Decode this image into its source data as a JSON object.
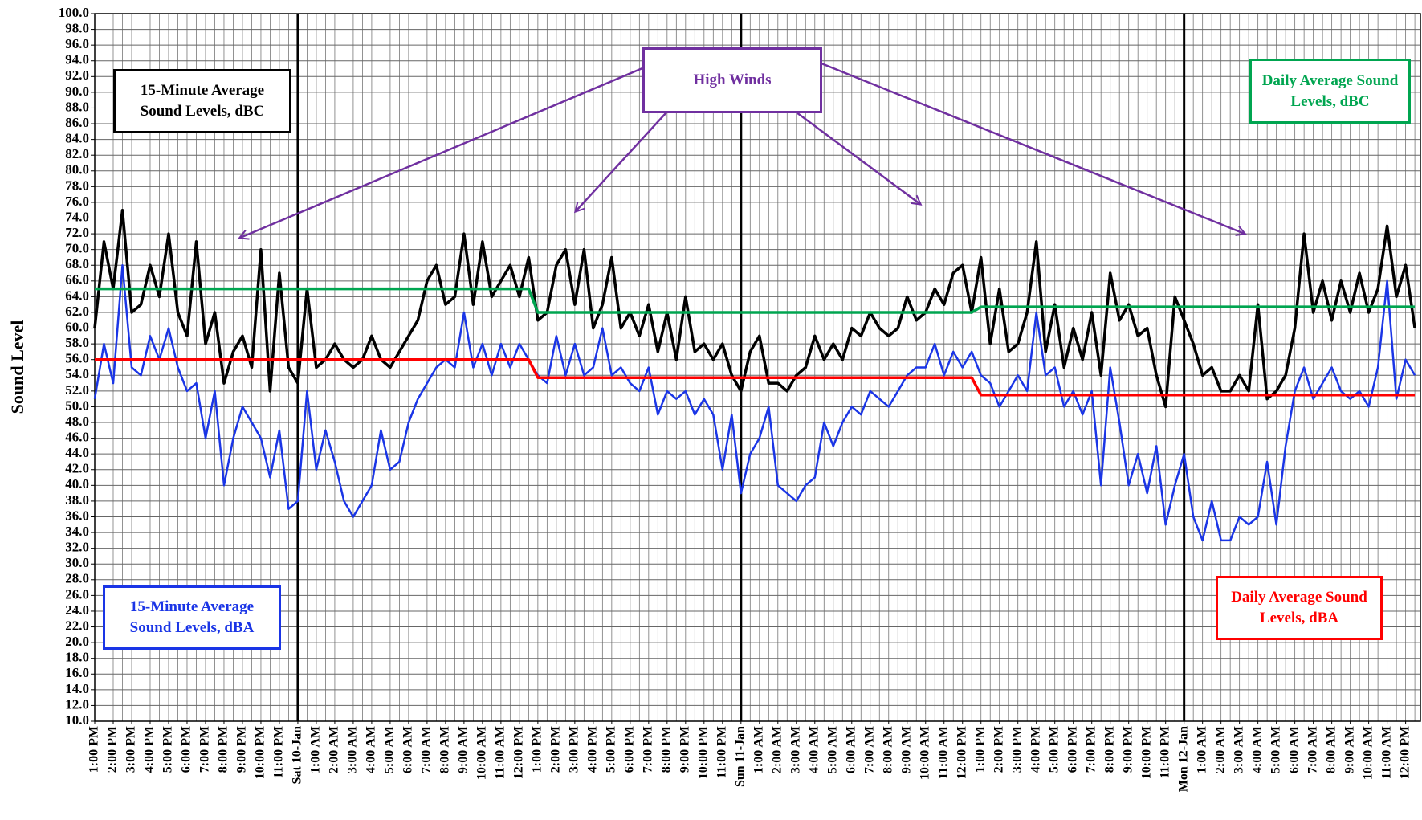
{
  "chart_data": {
    "type": "line",
    "y_label": "Sound Level",
    "annotation": "High Winds",
    "categories": [
      "1:00 PM",
      null,
      "2:00 PM",
      null,
      "3:00 PM",
      null,
      "4:00 PM",
      null,
      "5:00 PM",
      null,
      "6:00 PM",
      null,
      "7:00 PM",
      null,
      "8:00 PM",
      null,
      "9:00 PM",
      null,
      "10:00 PM",
      null,
      "11:00 PM",
      null,
      "Sat 10-Jan",
      null,
      "1:00 AM",
      null,
      "2:00 AM",
      null,
      "3:00 AM",
      null,
      "4:00 AM",
      null,
      "5:00 AM",
      null,
      "6:00 AM",
      null,
      "7:00 AM",
      null,
      "8:00 AM",
      null,
      "9:00 AM",
      null,
      "10:00 AM",
      null,
      "11:00 AM",
      null,
      "12:00 PM",
      null,
      "1:00 PM",
      null,
      "2:00 PM",
      null,
      "3:00 PM",
      null,
      "4:00 PM",
      null,
      "5:00 PM",
      null,
      "6:00 PM",
      null,
      "7:00 PM",
      null,
      "8:00 PM",
      null,
      "9:00 PM",
      null,
      "10:00 PM",
      null,
      "11:00 PM",
      null,
      "Sun 11-Jan",
      null,
      "1:00 AM",
      null,
      "2:00 AM",
      null,
      "3:00 AM",
      null,
      "4:00 AM",
      null,
      "5:00 AM",
      null,
      "6:00 AM",
      null,
      "7:00 AM",
      null,
      "8:00 AM",
      null,
      "9:00 AM",
      null,
      "10:00 AM",
      null,
      "11:00 AM",
      null,
      "12:00 PM",
      null,
      "1:00 PM",
      null,
      "2:00 PM",
      null,
      "3:00 PM",
      null,
      "4:00 PM",
      null,
      "5:00 PM",
      null,
      "6:00 PM",
      null,
      "7:00 PM",
      null,
      "8:00 PM",
      null,
      "9:00 PM",
      null,
      "10:00 PM",
      null,
      "11:00 PM",
      null,
      "Mon 12-Jan",
      null,
      "1:00 AM",
      null,
      "2:00 AM",
      null,
      "3:00 AM",
      null,
      "4:00 AM",
      null,
      "5:00 AM",
      null,
      "6:00 AM",
      null,
      "7:00 AM",
      null,
      "8:00 AM",
      null,
      "9:00 AM",
      null,
      "10:00 AM",
      null,
      "11:00 AM",
      null,
      "12:00 PM",
      null
    ],
    "series": [
      {
        "name": "15-Minute Average Sound Levels, dBC",
        "color": "#000000",
        "width": 3.5,
        "values": [
          60,
          71,
          65,
          75,
          62,
          63,
          68,
          64,
          72,
          62,
          59,
          71,
          58,
          62,
          53,
          57,
          59,
          55,
          70,
          52,
          67,
          55,
          53,
          65,
          55,
          56,
          58,
          56,
          55,
          56,
          59,
          56,
          55,
          57,
          59,
          61,
          66,
          68,
          63,
          64,
          72,
          63,
          71,
          64,
          66,
          68,
          64,
          69,
          61,
          62,
          68,
          70,
          63,
          70,
          60,
          63,
          69,
          60,
          62,
          59,
          63,
          57,
          62,
          56,
          64,
          57,
          58,
          56,
          58,
          54,
          52,
          57,
          59,
          53,
          53,
          52,
          54,
          55,
          59,
          56,
          58,
          56,
          60,
          59,
          62,
          60,
          59,
          60,
          64,
          61,
          62,
          65,
          63,
          67,
          68,
          62,
          69,
          58,
          65,
          57,
          58,
          62,
          71,
          57,
          63,
          55,
          60,
          56,
          62,
          54,
          67,
          61,
          63,
          59,
          60,
          54,
          50,
          64,
          61,
          58,
          54,
          55,
          52,
          52,
          54,
          52,
          63,
          51,
          52,
          54,
          60,
          72,
          62,
          66,
          61,
          66,
          62,
          67,
          62,
          65,
          73,
          64,
          68,
          60
        ]
      },
      {
        "name": "15-Minute Average Sound Levels, dBA",
        "color": "#1a35e6",
        "width": 2.5,
        "values": [
          51,
          58,
          53,
          68,
          55,
          54,
          59,
          56,
          60,
          55,
          52,
          53,
          46,
          52,
          40,
          46,
          50,
          48,
          46,
          41,
          47,
          37,
          38,
          52,
          42,
          47,
          43,
          38,
          36,
          38,
          40,
          47,
          42,
          43,
          48,
          51,
          53,
          55,
          56,
          55,
          62,
          55,
          58,
          54,
          58,
          55,
          58,
          56,
          54,
          53,
          59,
          54,
          58,
          54,
          55,
          60,
          54,
          55,
          53,
          52,
          55,
          49,
          52,
          51,
          52,
          49,
          51,
          49,
          42,
          49,
          39,
          44,
          46,
          50,
          40,
          39,
          38,
          40,
          41,
          48,
          45,
          48,
          50,
          49,
          52,
          51,
          50,
          52,
          54,
          55,
          55,
          58,
          54,
          57,
          55,
          57,
          54,
          53,
          50,
          52,
          54,
          52,
          62,
          54,
          55,
          50,
          52,
          49,
          52,
          40,
          55,
          48,
          40,
          44,
          39,
          45,
          35,
          40,
          44,
          36,
          33,
          38,
          33,
          33,
          36,
          35,
          36,
          43,
          35,
          45,
          52,
          55,
          51,
          53,
          55,
          52,
          51,
          52,
          50,
          55,
          66,
          51,
          56,
          54
        ]
      },
      {
        "name": "Daily Average Sound Levels, dBC",
        "color": "#00a550",
        "width": 3.5,
        "values": [
          65,
          65,
          65,
          65,
          65,
          65,
          65,
          65,
          65,
          65,
          65,
          65,
          65,
          65,
          65,
          65,
          65,
          65,
          65,
          65,
          65,
          65,
          65,
          65,
          65,
          65,
          65,
          65,
          65,
          65,
          65,
          65,
          65,
          65,
          65,
          65,
          65,
          65,
          65,
          65,
          65,
          65,
          65,
          65,
          65,
          65,
          65,
          65,
          62,
          62,
          62,
          62,
          62,
          62,
          62,
          62,
          62,
          62,
          62,
          62,
          62,
          62,
          62,
          62,
          62,
          62,
          62,
          62,
          62,
          62,
          62,
          62,
          62,
          62,
          62,
          62,
          62,
          62,
          62,
          62,
          62,
          62,
          62,
          62,
          62,
          62,
          62,
          62,
          62,
          62,
          62,
          62,
          62,
          62,
          62,
          62,
          62.7,
          62.7,
          62.7,
          62.7,
          62.7,
          62.7,
          62.7,
          62.7,
          62.7,
          62.7,
          62.7,
          62.7,
          62.7,
          62.7,
          62.7,
          62.7,
          62.7,
          62.7,
          62.7,
          62.7,
          62.7,
          62.7,
          62.7,
          62.7,
          62.7,
          62.7,
          62.7,
          62.7,
          62.7,
          62.7,
          62.7,
          62.7,
          62.7,
          62.7,
          62.7,
          62.7,
          62.7,
          62.7,
          62.7,
          62.7,
          62.7,
          62.7,
          62.7,
          62.7,
          62.7,
          62.7,
          62.7,
          62.7
        ]
      },
      {
        "name": "Daily Average Sound Levels, dBA",
        "color": "#ff0000",
        "width": 3.5,
        "values": [
          56,
          56,
          56,
          56,
          56,
          56,
          56,
          56,
          56,
          56,
          56,
          56,
          56,
          56,
          56,
          56,
          56,
          56,
          56,
          56,
          56,
          56,
          56,
          56,
          56,
          56,
          56,
          56,
          56,
          56,
          56,
          56,
          56,
          56,
          56,
          56,
          56,
          56,
          56,
          56,
          56,
          56,
          56,
          56,
          56,
          56,
          56,
          56,
          53.7,
          53.7,
          53.7,
          53.7,
          53.7,
          53.7,
          53.7,
          53.7,
          53.7,
          53.7,
          53.7,
          53.7,
          53.7,
          53.7,
          53.7,
          53.7,
          53.7,
          53.7,
          53.7,
          53.7,
          53.7,
          53.7,
          53.7,
          53.7,
          53.7,
          53.7,
          53.7,
          53.7,
          53.7,
          53.7,
          53.7,
          53.7,
          53.7,
          53.7,
          53.7,
          53.7,
          53.7,
          53.7,
          53.7,
          53.7,
          53.7,
          53.7,
          53.7,
          53.7,
          53.7,
          53.7,
          53.7,
          53.7,
          51.5,
          51.5,
          51.5,
          51.5,
          51.5,
          51.5,
          51.5,
          51.5,
          51.5,
          51.5,
          51.5,
          51.5,
          51.5,
          51.5,
          51.5,
          51.5,
          51.5,
          51.5,
          51.5,
          51.5,
          51.5,
          51.5,
          51.5,
          51.5,
          51.5,
          51.5,
          51.5,
          51.5,
          51.5,
          51.5,
          51.5,
          51.5,
          51.5,
          51.5,
          51.5,
          51.5,
          51.5,
          51.5,
          51.5,
          51.5,
          51.5,
          51.5,
          51.5,
          51.5,
          51.5,
          51.5,
          51.5,
          51.5
        ]
      }
    ],
    "ylim": [
      10,
      100
    ],
    "yticks": [
      {
        "value": 10,
        "label": "10.0"
      },
      {
        "value": 12,
        "label": "12.0"
      },
      {
        "value": 14,
        "label": "14.0"
      },
      {
        "value": 16,
        "label": "16.0"
      },
      {
        "value": 18,
        "label": "18.0"
      },
      {
        "value": 20,
        "label": "20.0"
      },
      {
        "value": 22,
        "label": "22.0"
      },
      {
        "value": 24,
        "label": "24.0"
      },
      {
        "value": 26,
        "label": "26.0"
      },
      {
        "value": 28,
        "label": "28.0"
      },
      {
        "value": 30,
        "label": "30.0"
      },
      {
        "value": 32,
        "label": "32.0"
      },
      {
        "value": 34,
        "label": "34.0"
      },
      {
        "value": 36,
        "label": "36.0"
      },
      {
        "value": 38,
        "label": "38.0"
      },
      {
        "value": 40,
        "label": "40.0"
      },
      {
        "value": 42,
        "label": "42.0"
      },
      {
        "value": 44,
        "label": "44.0"
      },
      {
        "value": 46,
        "label": "46.0"
      },
      {
        "value": 48,
        "label": "48.0"
      },
      {
        "value": 50,
        "label": "50.0"
      },
      {
        "value": 52,
        "label": "52.0"
      },
      {
        "value": 54,
        "label": "54.0"
      },
      {
        "value": 56,
        "label": "56.0"
      },
      {
        "value": 58,
        "label": "58.0"
      },
      {
        "value": 60,
        "label": "60.0"
      },
      {
        "value": 62,
        "label": "62.0"
      },
      {
        "value": 64,
        "label": "64.0"
      },
      {
        "value": 66,
        "label": "66.0"
      },
      {
        "value": 68,
        "label": "68.0"
      },
      {
        "value": 70,
        "label": "70.0"
      },
      {
        "value": 72,
        "label": "72.0"
      },
      {
        "value": 74,
        "label": "74.0"
      },
      {
        "value": 76,
        "label": "76.0"
      },
      {
        "value": 78,
        "label": "78.0"
      },
      {
        "value": 80,
        "label": "80.0"
      },
      {
        "value": 82,
        "label": "82.0"
      },
      {
        "value": 84,
        "label": "84.0"
      },
      {
        "value": 86,
        "label": "86.0"
      },
      {
        "value": 88,
        "label": "88.0"
      },
      {
        "value": 90,
        "label": "90.0"
      },
      {
        "value": 92,
        "label": "92.0"
      },
      {
        "value": 94,
        "label": "94.0"
      },
      {
        "value": 96,
        "label": "96.0"
      },
      {
        "value": 98,
        "label": "98.0"
      },
      {
        "value": 100,
        "label": "100.0"
      }
    ],
    "grid": true
  }
}
